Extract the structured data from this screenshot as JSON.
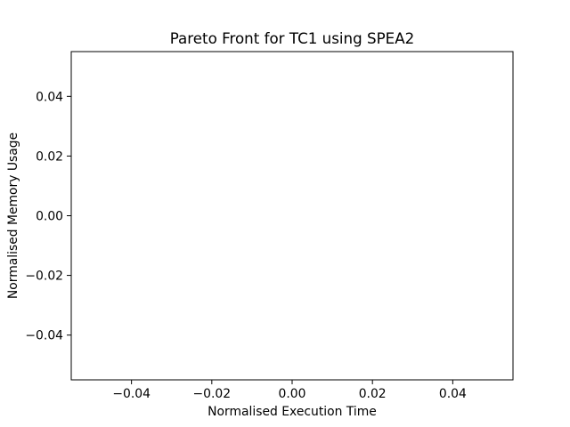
{
  "chart_data": {
    "type": "scatter",
    "title": "Pareto Front for TC1 using SPEA2",
    "xlabel": "Normalised Execution Time",
    "ylabel": "Normalised Memory Usage",
    "xlim": [
      -0.055,
      0.055
    ],
    "ylim": [
      -0.055,
      0.055
    ],
    "x_ticks": [
      -0.04,
      -0.02,
      0.0,
      0.02,
      0.04
    ],
    "y_ticks": [
      -0.04,
      -0.02,
      0.0,
      0.02,
      0.04
    ],
    "x_tick_labels": [
      "−0.04",
      "−0.02",
      "0.00",
      "0.02",
      "0.04"
    ],
    "y_tick_labels": [
      "−0.04",
      "−0.02",
      "0.00",
      "0.02",
      "0.04"
    ],
    "series": [
      {
        "x": [],
        "y": []
      }
    ],
    "grid": false,
    "colors": {
      "axis": "#000000",
      "background": "#ffffff"
    }
  }
}
